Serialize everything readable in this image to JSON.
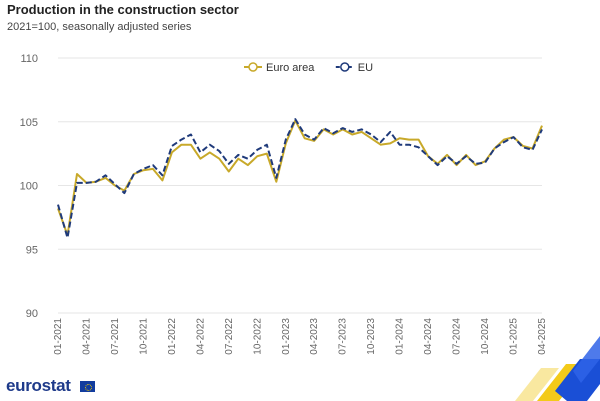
{
  "header": {
    "title": "Production in the construction sector",
    "subtitle": "2021=100, seasonally adjusted series"
  },
  "footer": {
    "logo_text": "eurostat"
  },
  "colors": {
    "euro_area": "#c8a92a",
    "eu": "#1f3a7a",
    "grid": "#e6e6e6",
    "brand_yellow": "#f2c400",
    "brand_blue": "#1a4fd6"
  },
  "chart_data": {
    "type": "line",
    "title": "Production in the construction sector",
    "subtitle": "2021=100, seasonally adjusted series",
    "xlabel": "",
    "ylabel": "",
    "ylim": [
      90,
      110
    ],
    "yticks": [
      90,
      95,
      100,
      105,
      110
    ],
    "grid": true,
    "legend_position": "top-center",
    "x": [
      "01-2021",
      "02-2021",
      "03-2021",
      "04-2021",
      "05-2021",
      "06-2021",
      "07-2021",
      "08-2021",
      "09-2021",
      "10-2021",
      "11-2021",
      "12-2021",
      "01-2022",
      "02-2022",
      "03-2022",
      "04-2022",
      "05-2022",
      "06-2022",
      "07-2022",
      "08-2022",
      "09-2022",
      "10-2022",
      "11-2022",
      "12-2022",
      "01-2023",
      "02-2023",
      "03-2023",
      "04-2023",
      "05-2023",
      "06-2023",
      "07-2023",
      "08-2023",
      "09-2023",
      "10-2023",
      "11-2023",
      "12-2023",
      "01-2024",
      "02-2024",
      "03-2024",
      "04-2024",
      "05-2024",
      "06-2024",
      "07-2024",
      "08-2024",
      "09-2024",
      "10-2024",
      "11-2024",
      "12-2024",
      "01-2025",
      "02-2025",
      "03-2025",
      "04-2025"
    ],
    "xtick_labels": [
      "01-2021",
      "04-2021",
      "07-2021",
      "10-2021",
      "01-2022",
      "04-2022",
      "07-2022",
      "10-2022",
      "01-2023",
      "04-2023",
      "07-2023",
      "10-2023",
      "01-2024",
      "04-2024",
      "07-2024",
      "10-2024",
      "01-2025",
      "04-2025"
    ],
    "series": [
      {
        "name": "Euro area",
        "line_style": "solid",
        "values": [
          98.2,
          96.1,
          100.9,
          100.2,
          100.3,
          100.6,
          100.0,
          99.6,
          100.9,
          101.2,
          101.3,
          100.4,
          102.6,
          103.2,
          103.2,
          102.1,
          102.6,
          102.1,
          101.1,
          102.1,
          101.6,
          102.3,
          102.5,
          100.3,
          103.3,
          105.1,
          103.7,
          103.5,
          104.4,
          104.0,
          104.4,
          104.0,
          104.2,
          103.7,
          103.2,
          103.3,
          103.7,
          103.6,
          103.6,
          102.3,
          101.7,
          102.4,
          101.6,
          102.4,
          101.6,
          101.9,
          102.9,
          103.6,
          103.8,
          103.1,
          102.9,
          104.7
        ]
      },
      {
        "name": "EU",
        "line_style": "dashed",
        "values": [
          98.5,
          95.9,
          100.2,
          100.2,
          100.3,
          100.8,
          100.1,
          99.4,
          100.9,
          101.3,
          101.6,
          100.8,
          103.1,
          103.6,
          104.0,
          102.6,
          103.2,
          102.7,
          101.7,
          102.4,
          102.1,
          102.8,
          103.2,
          100.6,
          103.6,
          105.2,
          104.0,
          103.6,
          104.5,
          104.1,
          104.5,
          104.2,
          104.4,
          104.0,
          103.4,
          104.2,
          103.2,
          103.2,
          103.0,
          102.3,
          101.6,
          102.3,
          101.7,
          102.3,
          101.7,
          101.8,
          102.9,
          103.4,
          103.8,
          103.0,
          102.8,
          104.4
        ]
      }
    ]
  }
}
